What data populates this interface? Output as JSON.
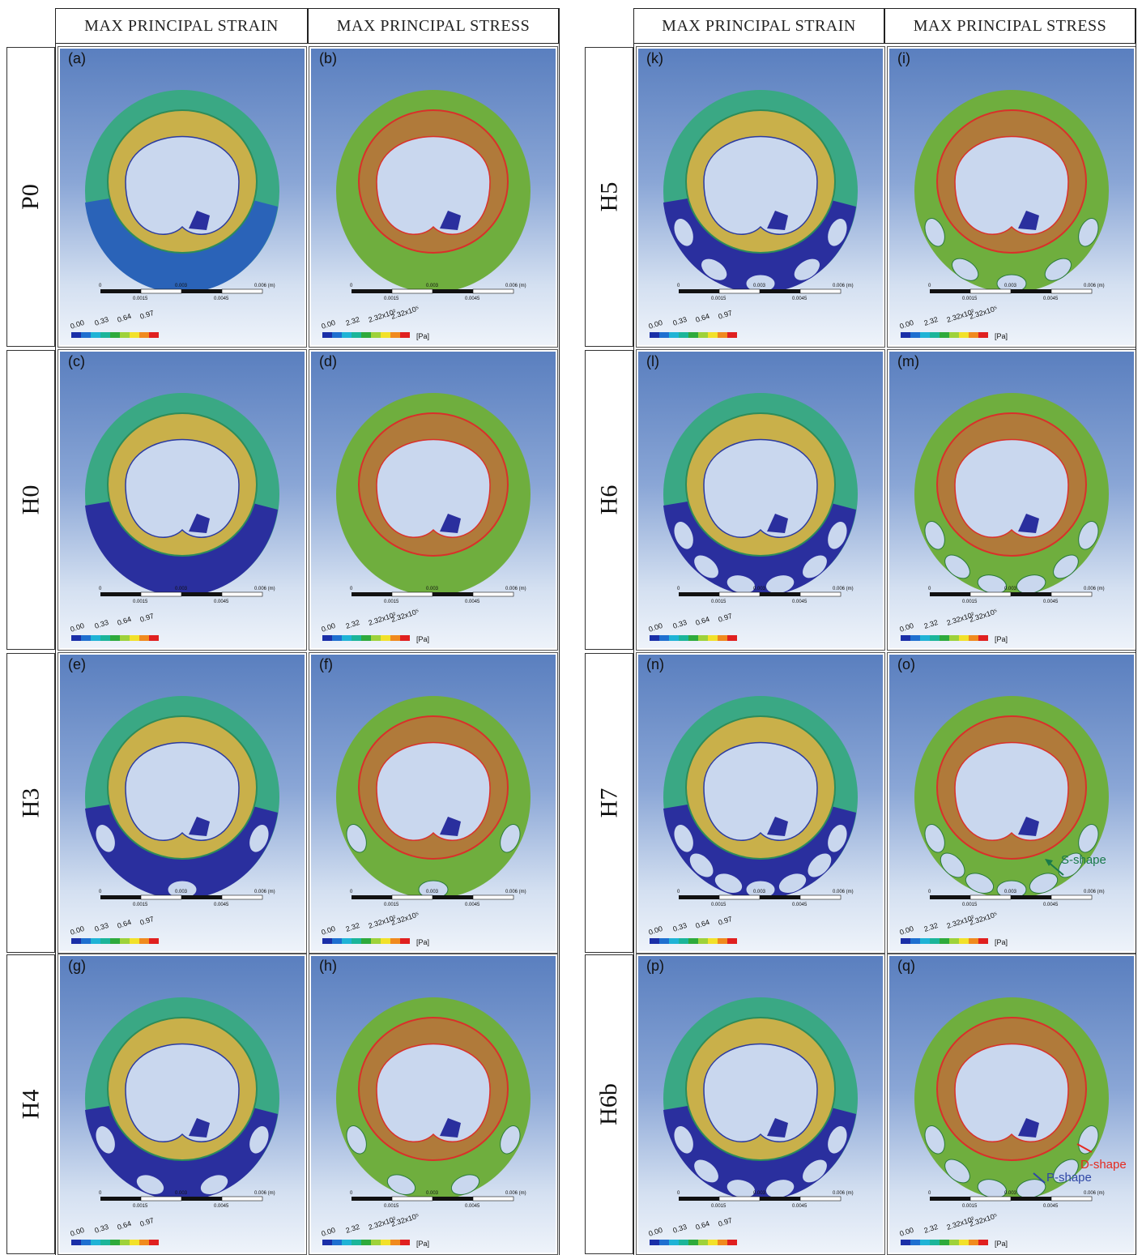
{
  "headers": {
    "left_strain": "MAX PRINCIPAL STRAIN",
    "left_stress": "MAX PRINCIPAL STRESS",
    "right_strain": "MAX PRINCIPAL STRAIN",
    "right_stress": "MAX PRINCIPAL STRESS"
  },
  "rows": [
    {
      "label": "P0",
      "panels": [
        "(a)",
        "(b)"
      ]
    },
    {
      "label": "H0",
      "panels": [
        "(c)",
        "(d)"
      ]
    },
    {
      "label": "H3",
      "panels": [
        "(e)",
        "(f)"
      ],
      "holes": 3
    },
    {
      "label": "H4",
      "panels": [
        "(g)",
        "(h)"
      ],
      "holes": 4
    },
    {
      "label": "H5",
      "panels": [
        "(k)",
        "(i)"
      ],
      "holes": 5
    },
    {
      "label": "H6",
      "panels": [
        "(l)",
        "(m)"
      ],
      "holes": 6
    },
    {
      "label": "H7",
      "panels": [
        "(n)",
        "(o)"
      ],
      "holes": 7
    },
    {
      "label": "H6b",
      "panels": [
        "(p)",
        "(q)"
      ],
      "holes": 6
    }
  ],
  "scale_bar": {
    "ticks_top": [
      "0",
      "0.003",
      "0.006 (m)"
    ],
    "ticks_bottom": [
      "0.0015",
      "0.0045"
    ]
  },
  "strain_legend": [
    "0.00",
    "0.33",
    "0.64",
    "0.97"
  ],
  "stress_legend": [
    "0.00",
    "2.32",
    "2.32x10²",
    "2.32x10⁵"
  ],
  "stress_unit": "[Pa]",
  "legend_colors": [
    "#1a2fa8",
    "#1e6fd0",
    "#1fb3d6",
    "#1bb59a",
    "#2eaa3c",
    "#9ed23a",
    "#f2e12a",
    "#f08a1e",
    "#e02020"
  ],
  "annotations": {
    "s_shape": "S-shape",
    "d_shape": "D-shape",
    "p_shape": "P-shape"
  },
  "colors": {
    "s_shape": "#1a7a4a",
    "d_shape": "#e52b1f",
    "p_shape": "#2f47a6"
  }
}
